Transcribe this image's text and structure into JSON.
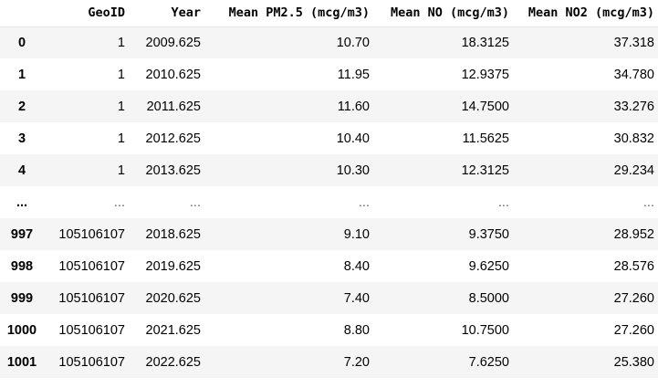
{
  "table": {
    "columns": [
      "",
      "GeoID",
      "Year",
      "Mean PM2.5 (mcg/m3)",
      "Mean NO (mcg/m3)",
      "Mean NO2 (mcg/m3)"
    ],
    "rows": [
      {
        "index": "0",
        "cells": [
          "1",
          "2009.625",
          "10.70",
          "18.3125",
          "37.318"
        ]
      },
      {
        "index": "1",
        "cells": [
          "1",
          "2010.625",
          "11.95",
          "12.9375",
          "34.780"
        ]
      },
      {
        "index": "2",
        "cells": [
          "1",
          "2011.625",
          "11.60",
          "14.7500",
          "33.276"
        ]
      },
      {
        "index": "3",
        "cells": [
          "1",
          "2012.625",
          "10.40",
          "11.5625",
          "30.832"
        ]
      },
      {
        "index": "4",
        "cells": [
          "1",
          "2013.625",
          "10.30",
          "12.3125",
          "29.234"
        ]
      },
      {
        "index": "...",
        "cells": [
          "...",
          "...",
          "...",
          "...",
          "..."
        ]
      },
      {
        "index": "997",
        "cells": [
          "105106107",
          "2018.625",
          "9.10",
          "9.3750",
          "28.952"
        ]
      },
      {
        "index": "998",
        "cells": [
          "105106107",
          "2019.625",
          "8.40",
          "9.6250",
          "28.576"
        ]
      },
      {
        "index": "999",
        "cells": [
          "105106107",
          "2020.625",
          "7.40",
          "8.5000",
          "27.260"
        ]
      },
      {
        "index": "1000",
        "cells": [
          "105106107",
          "2021.625",
          "8.80",
          "10.7500",
          "27.260"
        ]
      },
      {
        "index": "1001",
        "cells": [
          "105106107",
          "2022.625",
          "7.20",
          "7.6250",
          "25.380"
        ]
      }
    ]
  }
}
